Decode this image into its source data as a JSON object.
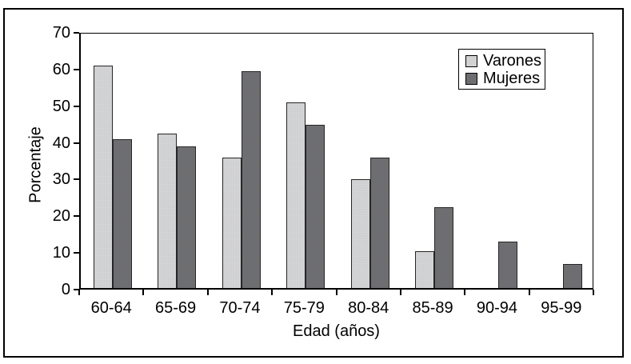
{
  "chart_data": {
    "type": "bar",
    "title": "",
    "categories": [
      "60-64",
      "65-69",
      "70-74",
      "75-79",
      "80-84",
      "85-89",
      "90-94",
      "95-99"
    ],
    "series": [
      {
        "name": "Varones",
        "color": "#d4d4d4",
        "values": [
          61,
          42.5,
          36,
          51,
          30,
          10.5,
          0,
          0
        ]
      },
      {
        "name": "Mujeres",
        "color": "#6e6e70",
        "values": [
          41,
          39,
          59.5,
          45,
          36,
          22.5,
          13,
          7
        ]
      }
    ],
    "xlabel": "Edad (años)",
    "ylabel": "Porcentaje",
    "ylim": [
      0,
      70
    ],
    "yticks": [
      0,
      10,
      20,
      30,
      40,
      50,
      60,
      70
    ],
    "grid": false,
    "legend_position": "top-right",
    "bar_border_color": "#262626",
    "axis_color": "#000000",
    "frame_color": "#000000",
    "background_color": "#ffffff"
  }
}
